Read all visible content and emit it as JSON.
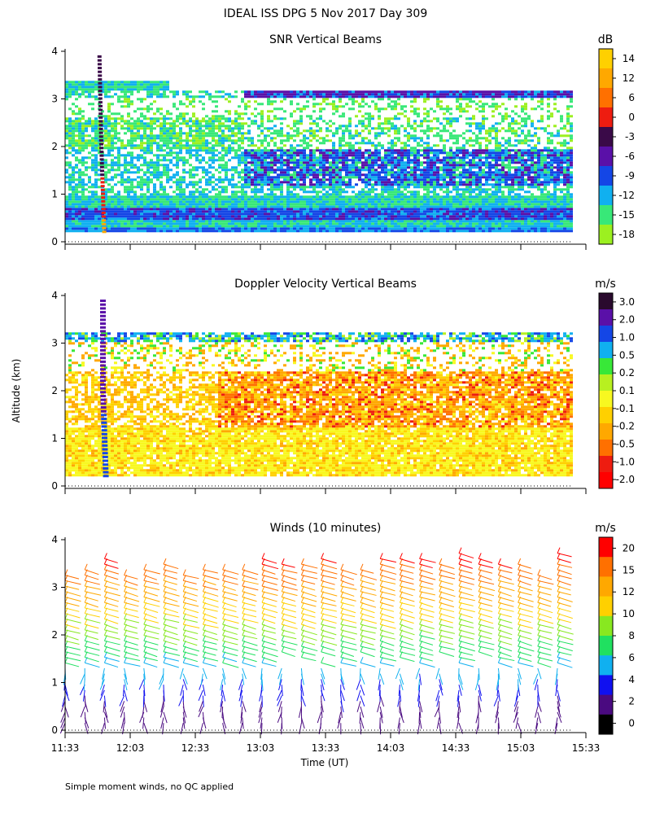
{
  "figure_title": "IDEAL ISS DPG    5 Nov 2017 Day 309",
  "y_axis_label": "Altitude (km)",
  "x_axis_label": "Time (UT)",
  "footnote": "Simple moment winds, no QC applied",
  "chart_data": [
    {
      "type": "heatmap",
      "title": "SNR Vertical Beams",
      "ylabel": "Altitude (km)",
      "ylim": [
        0,
        4
      ],
      "yticks": [
        "0",
        "1",
        "2",
        "3",
        "4"
      ],
      "colorbar_unit": "dB",
      "colorbar_labels": [
        "14",
        "12",
        "6",
        "0",
        "-3",
        "-6",
        "-9",
        "-12",
        "-15",
        "-18"
      ],
      "colorbar_colors": [
        "#ffd000",
        "#ffa800",
        "#ff7000",
        "#ee1c10",
        "#3a0a48",
        "#5a10a8",
        "#1446e6",
        "#10b0f0",
        "#38e878",
        "#9cf020"
      ],
      "palette": {
        "low": "#9cf020",
        "green": "#38e878",
        "cyan": "#10b0f0",
        "blue": "#1446e6",
        "purple": "#5a10a8",
        "dark": "#3a0a48",
        "red": "#ee1c10",
        "orange": "#ffa800"
      }
    },
    {
      "type": "heatmap",
      "title": "Doppler Velocity Vertical Beams",
      "ylabel": "Altitude (km)",
      "ylim": [
        0,
        4
      ],
      "yticks": [
        "0",
        "1",
        "2",
        "3",
        "4"
      ],
      "colorbar_unit": "m/s",
      "colorbar_labels": [
        "3.0",
        "2.0",
        "1.0",
        "0.5",
        "0.2",
        "0.1",
        "-0.1",
        "-0.2",
        "-0.5",
        "-1.0",
        "-2.0"
      ],
      "colorbar_colors": [
        "#2a0a2e",
        "#5a10a8",
        "#1446e6",
        "#10b0f0",
        "#38e838",
        "#b8f020",
        "#f8f820",
        "#ffd000",
        "#ffa800",
        "#ff7000",
        "#ee1c10",
        "#ff0000"
      ]
    },
    {
      "type": "wind_barbs",
      "title": "Winds (10 minutes)",
      "ylabel": "Altitude (km)",
      "ylim": [
        0,
        4
      ],
      "yticks": [
        "0",
        "1",
        "2",
        "3",
        "4"
      ],
      "colorbar_unit": "m/s",
      "colorbar_labels": [
        "20",
        "15",
        "12",
        "10",
        "8",
        "6",
        "4",
        "2",
        "0"
      ],
      "colorbar_colors": [
        "#ff0000",
        "#ff7000",
        "#ffa800",
        "#ffd000",
        "#88e820",
        "#20e060",
        "#10b0f0",
        "#1010f0",
        "#4a0a80",
        "#000000"
      ],
      "xlabel": "Time (UT)",
      "x_tick_labels": [
        "11:33",
        "12:03",
        "12:33",
        "13:03",
        "13:33",
        "14:03",
        "14:33",
        "15:03",
        "15:33"
      ]
    }
  ]
}
